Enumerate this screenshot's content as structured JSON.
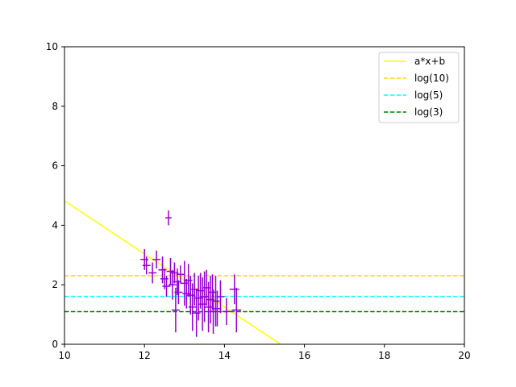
{
  "chart_data": {
    "type": "scatter",
    "xlim": [
      10,
      20
    ],
    "ylim": [
      0,
      10
    ],
    "xticks": [
      10,
      12,
      14,
      16,
      18,
      20
    ],
    "yticks": [
      0,
      2,
      4,
      6,
      8,
      10
    ],
    "grid": false,
    "legend_position": "top-right",
    "scatter_color": "#9400d3",
    "error_bars": {
      "color": "#9400d3",
      "points": [
        {
          "x": 12.0,
          "y": 2.85,
          "xerr": 0.1,
          "yerr": 0.35
        },
        {
          "x": 12.05,
          "y": 2.65,
          "xerr": 0.1,
          "yerr": 0.3
        },
        {
          "x": 12.2,
          "y": 2.4,
          "xerr": 0.1,
          "yerr": 0.35
        },
        {
          "x": 12.3,
          "y": 2.85,
          "xerr": 0.1,
          "yerr": 0.3
        },
        {
          "x": 12.45,
          "y": 2.5,
          "xerr": 0.1,
          "yerr": 0.45
        },
        {
          "x": 12.5,
          "y": 2.2,
          "xerr": 0.1,
          "yerr": 0.35
        },
        {
          "x": 12.55,
          "y": 1.95,
          "xerr": 0.1,
          "yerr": 0.35
        },
        {
          "x": 12.6,
          "y": 4.25,
          "xerr": 0.08,
          "yerr": 0.25
        },
        {
          "x": 12.65,
          "y": 2.45,
          "xerr": 0.1,
          "yerr": 0.45
        },
        {
          "x": 12.7,
          "y": 2.0,
          "xerr": 0.1,
          "yerr": 0.5
        },
        {
          "x": 12.75,
          "y": 2.4,
          "xerr": 0.1,
          "yerr": 0.35
        },
        {
          "x": 12.78,
          "y": 1.15,
          "xerr": 0.1,
          "yerr": 0.75
        },
        {
          "x": 12.82,
          "y": 2.1,
          "xerr": 0.1,
          "yerr": 0.45
        },
        {
          "x": 12.85,
          "y": 1.75,
          "xerr": 0.1,
          "yerr": 0.4
        },
        {
          "x": 12.9,
          "y": 2.35,
          "xerr": 0.1,
          "yerr": 0.3
        },
        {
          "x": 13.0,
          "y": 2.05,
          "xerr": 0.1,
          "yerr": 0.75
        },
        {
          "x": 13.05,
          "y": 1.7,
          "xerr": 0.1,
          "yerr": 0.5
        },
        {
          "x": 13.1,
          "y": 2.15,
          "xerr": 0.1,
          "yerr": 0.55
        },
        {
          "x": 13.15,
          "y": 1.65,
          "xerr": 0.1,
          "yerr": 0.65
        },
        {
          "x": 13.2,
          "y": 1.25,
          "xerr": 0.1,
          "yerr": 0.8
        },
        {
          "x": 13.25,
          "y": 1.85,
          "xerr": 0.1,
          "yerr": 0.55
        },
        {
          "x": 13.3,
          "y": 1.05,
          "xerr": 0.1,
          "yerr": 0.8
        },
        {
          "x": 13.35,
          "y": 1.55,
          "xerr": 0.1,
          "yerr": 0.75
        },
        {
          "x": 13.4,
          "y": 1.8,
          "xerr": 0.1,
          "yerr": 0.6
        },
        {
          "x": 13.45,
          "y": 1.35,
          "xerr": 0.1,
          "yerr": 0.9
        },
        {
          "x": 13.5,
          "y": 1.6,
          "xerr": 0.1,
          "yerr": 0.85
        },
        {
          "x": 13.55,
          "y": 1.9,
          "xerr": 0.1,
          "yerr": 0.6
        },
        {
          "x": 13.6,
          "y": 1.25,
          "xerr": 0.1,
          "yerr": 0.85
        },
        {
          "x": 13.65,
          "y": 1.5,
          "xerr": 0.1,
          "yerr": 0.8
        },
        {
          "x": 13.7,
          "y": 1.75,
          "xerr": 0.1,
          "yerr": 0.6
        },
        {
          "x": 13.72,
          "y": 1.1,
          "xerr": 0.1,
          "yerr": 0.75
        },
        {
          "x": 13.78,
          "y": 1.45,
          "xerr": 0.1,
          "yerr": 0.85
        },
        {
          "x": 13.82,
          "y": 1.2,
          "xerr": 0.1,
          "yerr": 0.6
        },
        {
          "x": 13.9,
          "y": 1.6,
          "xerr": 0.1,
          "yerr": 0.55
        },
        {
          "x": 14.05,
          "y": 1.1,
          "xerr": 0.1,
          "yerr": 0.45
        },
        {
          "x": 14.25,
          "y": 1.85,
          "xerr": 0.12,
          "yerr": 0.5
        },
        {
          "x": 14.3,
          "y": 1.15,
          "xerr": 0.12,
          "yerr": 0.75
        }
      ]
    },
    "series": [
      {
        "name": "a*x+b",
        "kind": "line",
        "color": "#ffff00",
        "dash": "solid",
        "x": [
          10,
          15.4
        ],
        "y": [
          4.82,
          0
        ]
      },
      {
        "name": "log(10)",
        "kind": "hline",
        "color": "#ffd700",
        "dash": "dashed",
        "y": 2.302
      },
      {
        "name": "log(5)",
        "kind": "hline",
        "color": "#00ffff",
        "dash": "dashed",
        "y": 1.609
      },
      {
        "name": "log(3)",
        "kind": "hline",
        "color": "#008000",
        "dash": "dashed",
        "y": 1.099
      }
    ]
  }
}
